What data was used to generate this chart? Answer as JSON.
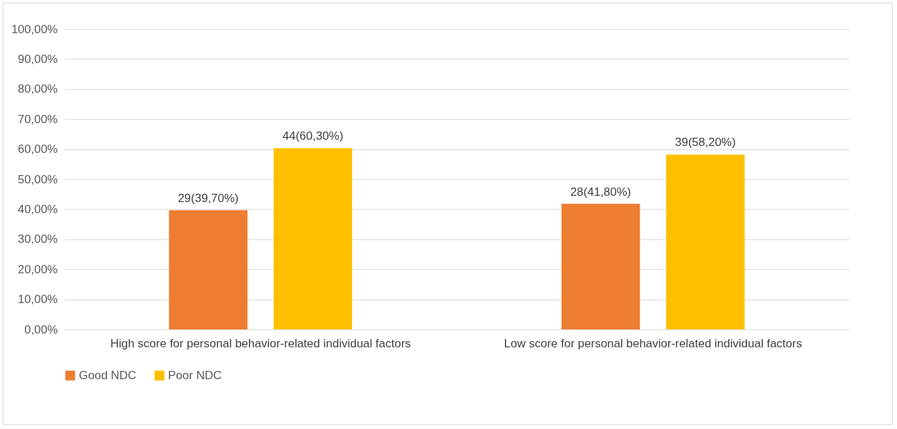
{
  "chart_data": {
    "type": "bar",
    "categories": [
      "High score for personal behavior-related individual factors",
      "Low score for personal behavior-related individual factors"
    ],
    "series": [
      {
        "name": "Good NDC",
        "color": "#ed7d31",
        "values": [
          39.7,
          41.8
        ],
        "value_labels": [
          "29(39,70%)",
          "28(41,80%)"
        ]
      },
      {
        "name": "Poor NDC",
        "color": "#ffc000",
        "values": [
          60.3,
          58.2
        ],
        "value_labels": [
          "44(60,30%)",
          "39(58,20%)"
        ]
      }
    ],
    "ylim": [
      0,
      100
    ],
    "yticks": [
      {
        "value": 0,
        "label": "0,00%"
      },
      {
        "value": 10,
        "label": "10,00%"
      },
      {
        "value": 20,
        "label": "20,00%"
      },
      {
        "value": 30,
        "label": "30,00%"
      },
      {
        "value": 40,
        "label": "40,00%"
      },
      {
        "value": 50,
        "label": "50,00%"
      },
      {
        "value": 60,
        "label": "60,00%"
      },
      {
        "value": 70,
        "label": "70,00%"
      },
      {
        "value": 80,
        "label": "80,00%"
      },
      {
        "value": 90,
        "label": "90,00%"
      },
      {
        "value": 100,
        "label": "100,00%"
      }
    ],
    "grid": "y",
    "legend": "bottom"
  }
}
